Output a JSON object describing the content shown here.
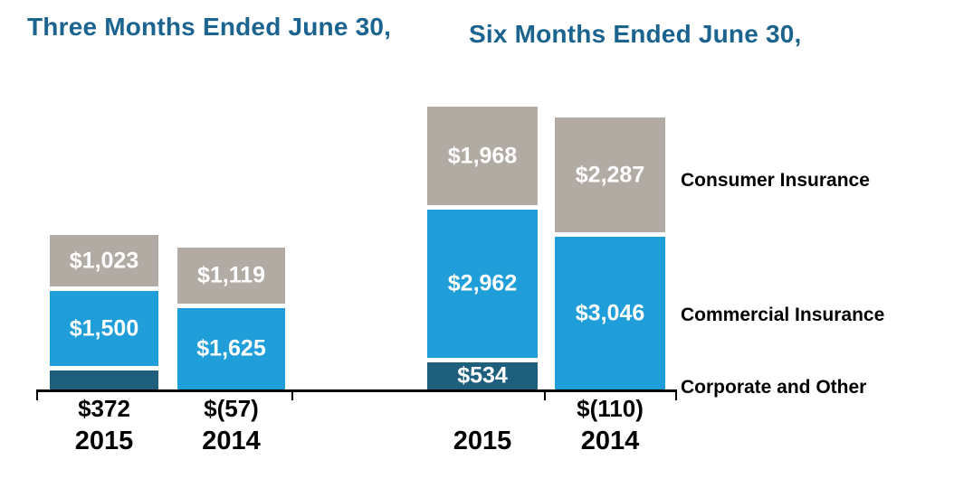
{
  "titles": {
    "left": "Three Months Ended June 30,",
    "right": "Six Months Ended June 30,"
  },
  "colors": {
    "consumer": "#B2ABA3",
    "commercial": "#1F9ED9",
    "corporate": "#1E5F7D",
    "title": "#1B648F",
    "axis": "#000000",
    "inside_label": "#FFFFFF",
    "outside_label": "#000000"
  },
  "chart_data": {
    "type": "bar",
    "stacked": true,
    "grid": false,
    "legend_position": "right",
    "groups": [
      {
        "label": "Three Months Ended June 30,",
        "bars": [
          {
            "year": "2015",
            "segments": [
              {
                "series": "Corporate and Other",
                "value": 372,
                "label": "$372",
                "label_position": "below-axis"
              },
              {
                "series": "Commercial Insurance",
                "value": 1500,
                "label": "$1,500",
                "label_position": "inside"
              },
              {
                "series": "Consumer Insurance",
                "value": 1023,
                "label": "$1,023",
                "label_position": "inside"
              }
            ]
          },
          {
            "year": "2014",
            "segments": [
              {
                "series": "Corporate and Other",
                "value": -57,
                "label": "$(57)",
                "label_position": "below-axis"
              },
              {
                "series": "Commercial Insurance",
                "value": 1625,
                "label": "$1,625",
                "label_position": "inside"
              },
              {
                "series": "Consumer Insurance",
                "value": 1119,
                "label": "$1,119",
                "label_position": "inside"
              }
            ]
          }
        ]
      },
      {
        "label": "Six Months Ended June 30,",
        "bars": [
          {
            "year": "2015",
            "segments": [
              {
                "series": "Corporate and Other",
                "value": 534,
                "label": "$534",
                "label_position": "inside"
              },
              {
                "series": "Commercial Insurance",
                "value": 2962,
                "label": "$2,962",
                "label_position": "inside"
              },
              {
                "series": "Consumer Insurance",
                "value": 1968,
                "label": "$1,968",
                "label_position": "inside"
              }
            ]
          },
          {
            "year": "2014",
            "segments": [
              {
                "series": "Corporate and Other",
                "value": -110,
                "label": "$(110)",
                "label_position": "below-axis"
              },
              {
                "series": "Commercial Insurance",
                "value": 3046,
                "label": "$3,046",
                "label_position": "inside"
              },
              {
                "series": "Consumer Insurance",
                "value": 2287,
                "label": "$2,287",
                "label_position": "inside"
              }
            ]
          }
        ]
      }
    ],
    "legend": [
      {
        "label": "Consumer Insurance",
        "series": "Consumer Insurance"
      },
      {
        "label": "Commercial Insurance",
        "series": "Commercial Insurance"
      },
      {
        "label": "Corporate and Other",
        "series": "Corporate and Other"
      }
    ]
  }
}
